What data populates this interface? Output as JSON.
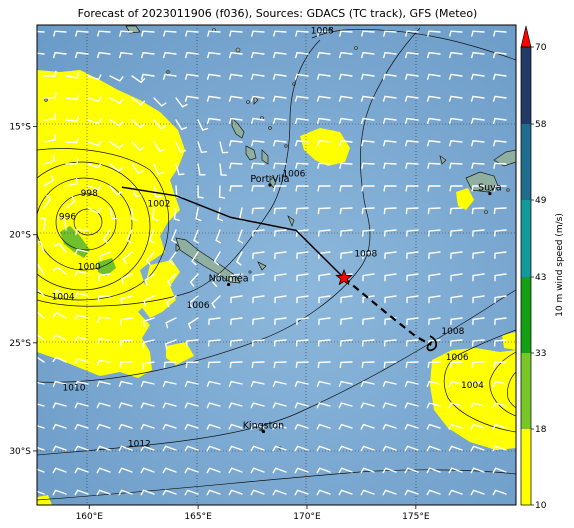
{
  "title": "Forecast of 2023011906 (f036), Sources: GDACS (TC track), GFS (Meteo)",
  "map": {
    "lon_range": [
      157.6,
      179.6
    ],
    "lat_range": [
      -32.5,
      -10.3
    ],
    "lon_ticks": [
      {
        "value": 160,
        "label": "160°E"
      },
      {
        "value": 165,
        "label": "165°E"
      },
      {
        "value": 170,
        "label": "170°E"
      },
      {
        "value": 175,
        "label": "175°E"
      }
    ],
    "lat_ticks": [
      {
        "value": -15,
        "label": "15°S"
      },
      {
        "value": -20,
        "label": "20°S"
      },
      {
        "value": -25,
        "label": "25°S"
      },
      {
        "value": -30,
        "label": "30°S"
      }
    ],
    "cities": [
      {
        "name": "Port-Vila",
        "lon": 168.3,
        "lat": -17.7
      },
      {
        "name": "Nouméa",
        "lon": 166.4,
        "lat": -22.3
      },
      {
        "name": "Suva",
        "lon": 178.4,
        "lat": -18.1
      },
      {
        "name": "Kingston",
        "lon": 168.0,
        "lat": -29.1
      }
    ],
    "isobar_labels": [
      {
        "text": "1008",
        "lon": 170.7,
        "lat": -10.7
      },
      {
        "text": "998",
        "lon": 160.0,
        "lat": -18.2
      },
      {
        "text": "996",
        "lon": 159.0,
        "lat": -19.3
      },
      {
        "text": "1002",
        "lon": 163.2,
        "lat": -18.7
      },
      {
        "text": "1006",
        "lon": 169.4,
        "lat": -17.3
      },
      {
        "text": "1000",
        "lon": 160.0,
        "lat": -21.6
      },
      {
        "text": "1004",
        "lon": 158.8,
        "lat": -23.0
      },
      {
        "text": "1006",
        "lon": 165.0,
        "lat": -23.4
      },
      {
        "text": "1008",
        "lon": 172.7,
        "lat": -21.0
      },
      {
        "text": "1008",
        "lon": 176.7,
        "lat": -24.6
      },
      {
        "text": "1006",
        "lon": 176.9,
        "lat": -25.8
      },
      {
        "text": "1004",
        "lon": 177.6,
        "lat": -27.1
      },
      {
        "text": "1010",
        "lon": 159.3,
        "lat": -27.2
      },
      {
        "text": "1012",
        "lon": 162.3,
        "lat": -29.8
      }
    ],
    "track_observed": [
      {
        "lon": 161.5,
        "lat": -17.8
      },
      {
        "lon": 164.0,
        "lat": -18.2
      },
      {
        "lon": 166.5,
        "lat": -19.2
      },
      {
        "lon": 169.5,
        "lat": -19.8
      },
      {
        "lon": 171.7,
        "lat": -22.0
      }
    ],
    "track_forecast": [
      {
        "lon": 171.7,
        "lat": -22.0
      },
      {
        "lon": 173.5,
        "lat": -23.5
      },
      {
        "lon": 175.0,
        "lat": -24.7
      },
      {
        "lon": 175.7,
        "lat": -25.1
      }
    ],
    "current_position": {
      "lon": 171.7,
      "lat": -22.0
    },
    "land_color": "#8fb0a0",
    "ocean_color": "#79a6cf"
  },
  "colorbar": {
    "label": "10 m wind speed (m/s)",
    "ticks": [
      "10",
      "18",
      "33",
      "43",
      "49",
      "58",
      "70"
    ],
    "colors": [
      "#ffff00",
      "#79c726",
      "#14a014",
      "#129a9a",
      "#1f6c8e",
      "#223b66",
      "#1d2250"
    ],
    "extend_color": "#ff0000"
  }
}
